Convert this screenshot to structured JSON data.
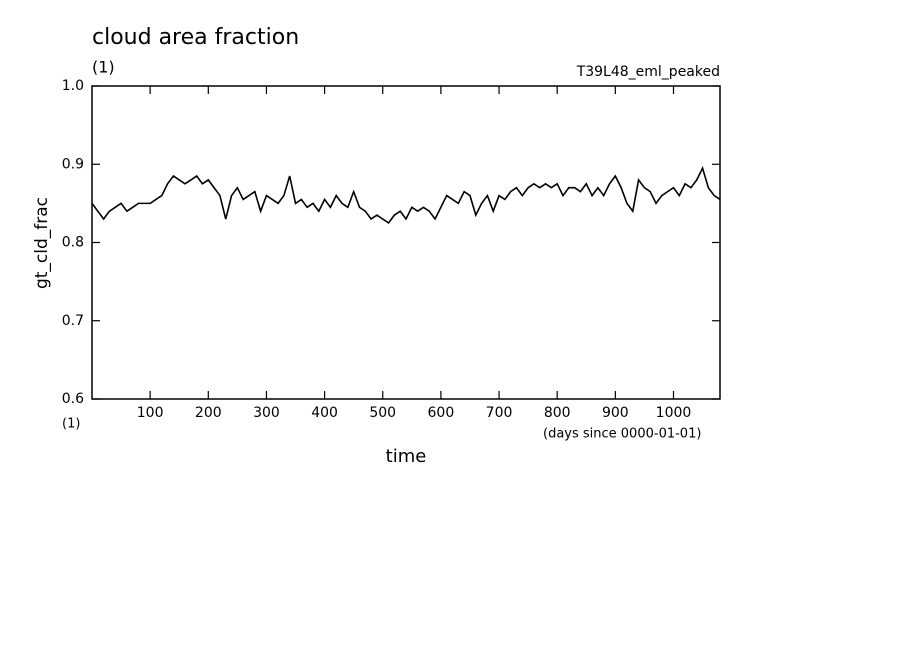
{
  "chart_data": {
    "type": "line",
    "title": "cloud area fraction",
    "title_unit": "(1)",
    "run_label": "T39L48_eml_peaked",
    "y_label": "gt_cld_frac",
    "x_label": "time",
    "x_unit_label": "(1)",
    "x_unit_note": "(days since 0000-01-01)",
    "xlim": [
      0,
      1080
    ],
    "xticks": [
      100,
      200,
      300,
      400,
      500,
      600,
      700,
      800,
      900,
      1000
    ],
    "ylim": [
      0.6,
      1
    ],
    "yticks": [
      0.6,
      0.7,
      0.8,
      0.9,
      {
        "value": 1,
        "label": "1.0"
      }
    ],
    "x": [
      0,
      10,
      20,
      30,
      40,
      50,
      60,
      70,
      80,
      90,
      100,
      110,
      120,
      130,
      140,
      150,
      160,
      170,
      180,
      190,
      200,
      210,
      220,
      230,
      240,
      250,
      260,
      270,
      280,
      290,
      300,
      310,
      320,
      330,
      340,
      350,
      360,
      370,
      380,
      390,
      400,
      410,
      420,
      430,
      440,
      450,
      460,
      470,
      480,
      490,
      500,
      510,
      520,
      530,
      540,
      550,
      560,
      570,
      580,
      590,
      600,
      610,
      620,
      630,
      640,
      650,
      660,
      670,
      680,
      690,
      700,
      710,
      720,
      730,
      740,
      750,
      760,
      770,
      780,
      790,
      800,
      810,
      820,
      830,
      840,
      850,
      860,
      870,
      880,
      890,
      900,
      910,
      920,
      930,
      940,
      950,
      960,
      970,
      980,
      990,
      1000,
      1010,
      1020,
      1030,
      1040,
      1050,
      1060,
      1070,
      1080
    ],
    "series": [
      {
        "color": "#000000",
        "values": [
          0.85,
          0.84,
          0.83,
          0.84,
          0.845,
          0.85,
          0.84,
          0.845,
          0.85,
          0.85,
          0.85,
          0.855,
          0.86,
          0.875,
          0.885,
          0.88,
          0.875,
          0.88,
          0.885,
          0.875,
          0.88,
          0.87,
          0.86,
          0.83,
          0.86,
          0.87,
          0.855,
          0.86,
          0.865,
          0.84,
          0.86,
          0.855,
          0.85,
          0.86,
          0.885,
          0.85,
          0.855,
          0.845,
          0.85,
          0.84,
          0.855,
          0.845,
          0.86,
          0.85,
          0.845,
          0.865,
          0.845,
          0.84,
          0.83,
          0.835,
          0.83,
          0.825,
          0.835,
          0.84,
          0.83,
          0.845,
          0.84,
          0.845,
          0.84,
          0.83,
          0.845,
          0.86,
          0.855,
          0.85,
          0.865,
          0.86,
          0.835,
          0.85,
          0.86,
          0.84,
          0.86,
          0.855,
          0.865,
          0.87,
          0.86,
          0.87,
          0.875,
          0.87,
          0.875,
          0.87,
          0.875,
          0.86,
          0.87,
          0.87,
          0.865,
          0.875,
          0.86,
          0.87,
          0.86,
          0.875,
          0.885,
          0.87,
          0.85,
          0.84,
          0.88,
          0.87,
          0.865,
          0.85,
          0.86,
          0.865,
          0.87,
          0.86,
          0.875,
          0.87,
          0.88,
          0.895,
          0.87,
          0.86,
          0.855
        ]
      }
    ]
  }
}
